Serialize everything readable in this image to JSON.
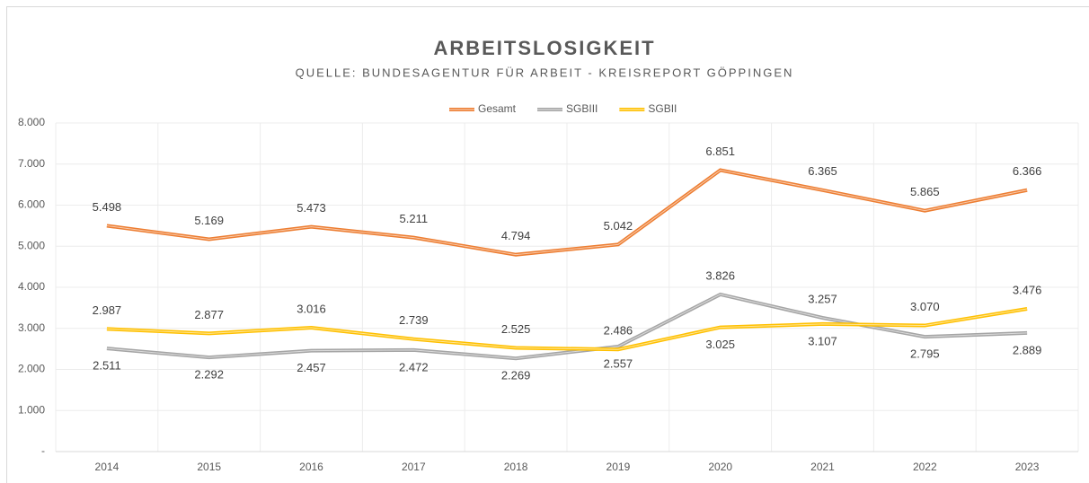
{
  "chart_data": {
    "type": "line",
    "title": "ARBEITSLOSIGKEIT",
    "subtitle": "QUELLE: BUNDESAGENTUR FÜR ARBEIT - KREISREPORT GÖPPINGEN",
    "categories": [
      "2014",
      "2015",
      "2016",
      "2017",
      "2018",
      "2019",
      "2020",
      "2021",
      "2022",
      "2023"
    ],
    "series": [
      {
        "name": "Gesamt",
        "color": "#ed7d31",
        "values": [
          5498,
          5169,
          5473,
          5211,
          4794,
          5042,
          6851,
          6365,
          5865,
          6366
        ],
        "value_labels": [
          "5.498",
          "5.169",
          "5.473",
          "5.211",
          "4.794",
          "5.042",
          "6.851",
          "6.365",
          "5.865",
          "6.366"
        ]
      },
      {
        "name": "SGBIII",
        "color": "#a5a5a5",
        "values": [
          2511,
          2292,
          2457,
          2472,
          2269,
          2557,
          3826,
          3257,
          2795,
          2889
        ],
        "value_labels": [
          "2.511",
          "2.292",
          "2.457",
          "2.472",
          "2.269",
          "2.557",
          "3.826",
          "3.257",
          "2.795",
          "2.889"
        ]
      },
      {
        "name": "SGBII",
        "color": "#ffc000",
        "values": [
          2987,
          2877,
          3016,
          2739,
          2525,
          2486,
          3025,
          3107,
          3070,
          3476
        ],
        "value_labels": [
          "2.987",
          "2.877",
          "3.016",
          "2.739",
          "2.525",
          "2.486",
          "3.025",
          "3.107",
          "3.070",
          "3.476"
        ]
      }
    ],
    "ylim": [
      0,
      8000
    ],
    "yticks": [
      {
        "value": 0,
        "label": "-"
      },
      {
        "value": 1000,
        "label": "1.000"
      },
      {
        "value": 2000,
        "label": "2.000"
      },
      {
        "value": 3000,
        "label": "3.000"
      },
      {
        "value": 4000,
        "label": "4.000"
      },
      {
        "value": 5000,
        "label": "5.000"
      },
      {
        "value": 6000,
        "label": "6.000"
      },
      {
        "value": 7000,
        "label": "7.000"
      },
      {
        "value": 8000,
        "label": "8.000"
      }
    ],
    "grid": true,
    "legend": "top"
  }
}
